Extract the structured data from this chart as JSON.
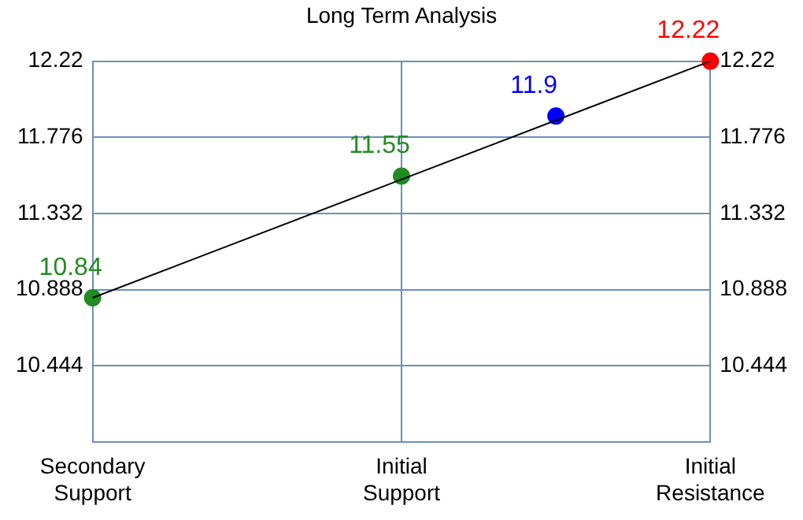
{
  "chart_data": {
    "type": "line",
    "title": "Long Term Analysis",
    "categories": [
      "Secondary Support",
      null,
      "Initial Support",
      null,
      "Initial Resistance"
    ],
    "series": [
      {
        "type": "line",
        "color": "#000000",
        "values": [
          10.84,
          null,
          null,
          null,
          12.22
        ],
        "marker": "none"
      },
      {
        "type": "scatter",
        "colors": [
          "#228b22",
          null,
          "#228b22",
          "#0000ff",
          "#ff0000"
        ],
        "values": [
          10.84,
          null,
          11.55,
          11.9,
          12.22
        ],
        "value_labels": [
          "10.84",
          null,
          "11.55",
          "11.9",
          "12.22"
        ],
        "marker": "circle"
      }
    ],
    "ylim": [
      10,
      12.22
    ],
    "yticks": [
      10.444,
      10.888,
      11.332,
      11.776,
      12.22
    ],
    "y2lim": [
      10,
      12.22
    ],
    "y2ticks": [
      10.444,
      10.888,
      11.332,
      11.776,
      12.22
    ],
    "grid": true,
    "legend": false
  }
}
